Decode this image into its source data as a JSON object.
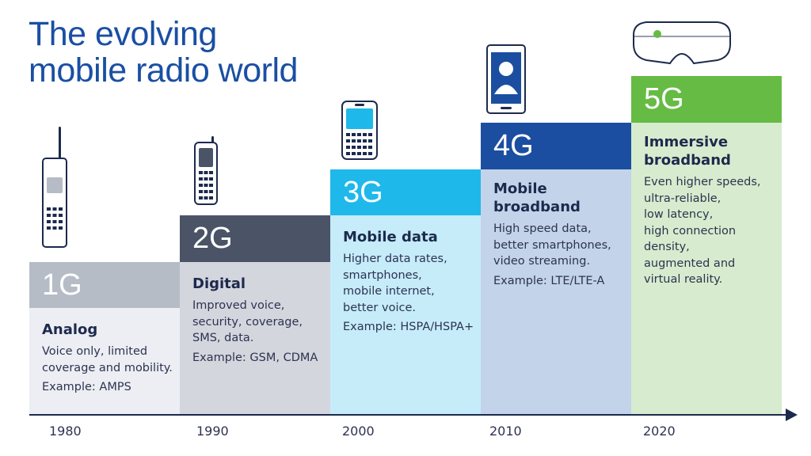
{
  "title": {
    "line1": "The evolving",
    "line2": "mobile radio world"
  },
  "generations": [
    {
      "label": "1G",
      "name": "Analog",
      "description": [
        "Voice only, limited",
        "coverage and mobility."
      ],
      "example": "Example: AMPS",
      "header_color": "#b6bcc6",
      "body_color": "#eceef3"
    },
    {
      "label": "2G",
      "name": "Digital",
      "description": [
        "Improved voice,",
        "security, coverage,",
        "SMS, data."
      ],
      "example": "Example: GSM, CDMA",
      "header_color": "#4a5466",
      "body_color": "#d4d6de"
    },
    {
      "label": "3G",
      "name": "Mobile data",
      "description": [
        "Higher data rates,",
        "smartphones,",
        "mobile internet,",
        "better voice."
      ],
      "example": "Example: HSPA/HSPA+",
      "header_color": "#1fb8ea",
      "body_color": "#c6ecfa"
    },
    {
      "label": "4G",
      "name": "Mobile broadband",
      "description": [
        "High speed data,",
        "better smartphones,",
        "video streaming."
      ],
      "example": "Example: LTE/LTE-A",
      "header_color": "#1b4ea0",
      "body_color": "#c3d3ea"
    },
    {
      "label": "5G",
      "name_lines": [
        "Immersive",
        "broadband"
      ],
      "description": [
        "Even higher speeds,",
        "ultra-reliable,",
        "low latency,",
        "high connection",
        "density,",
        "augmented and",
        "virtual reality."
      ],
      "header_color": "#66bb44",
      "body_color": "#d7ecce"
    }
  ],
  "timeline": {
    "years": [
      "1980",
      "1990",
      "2000",
      "2010",
      "2020"
    ]
  },
  "icons": [
    "brick-phone-icon",
    "feature-phone-icon",
    "qwerty-phone-icon",
    "smartphone-icon",
    "vr-headset-icon"
  ]
}
